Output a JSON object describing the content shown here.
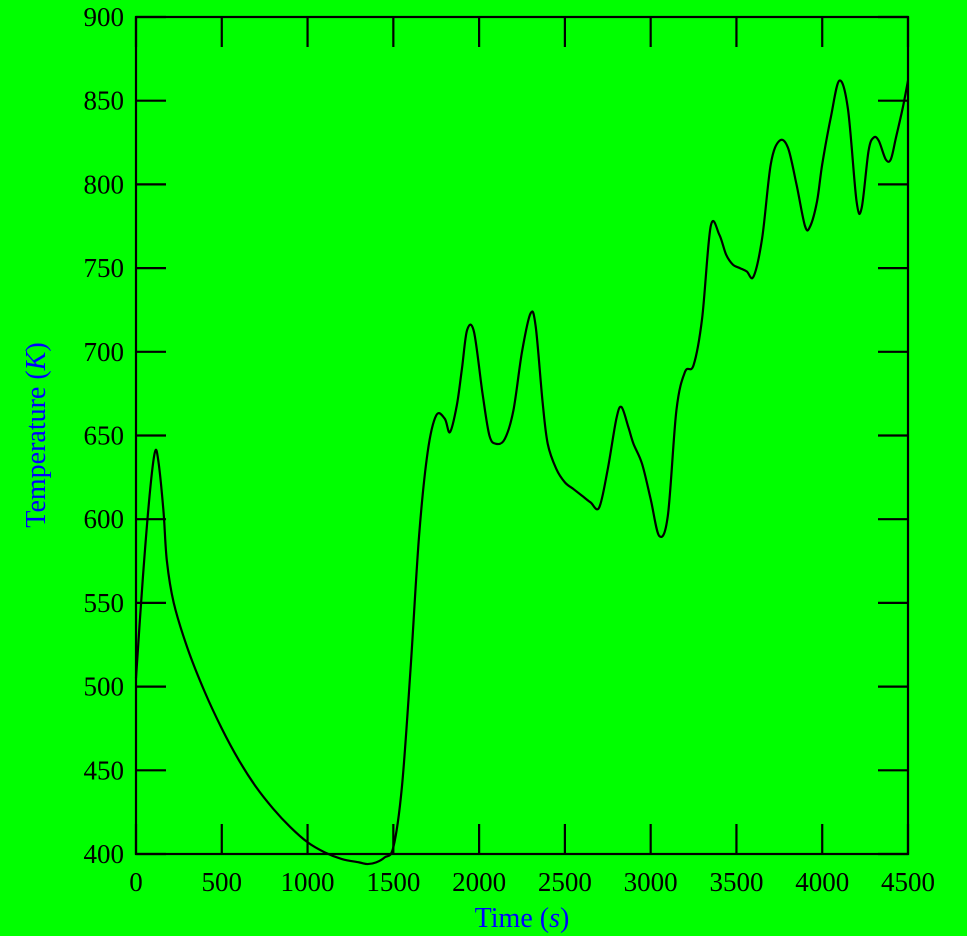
{
  "colors": {
    "background": "#00ff00",
    "line": "#000000",
    "axis_title": "#0000ff",
    "tick": "#000000"
  },
  "chart_data": {
    "type": "line",
    "title": "",
    "xlabel": "Time",
    "xlabel_unit": "s",
    "ylabel": "Temperature",
    "ylabel_unit": "K",
    "xlim": [
      0,
      4500
    ],
    "ylim": [
      400,
      900
    ],
    "xticks": [
      "0",
      "500",
      "1000",
      "1500",
      "2000",
      "2500",
      "3000",
      "3500",
      "4000",
      "4500"
    ],
    "yticks": [
      "400",
      "450",
      "500",
      "550",
      "600",
      "650",
      "700",
      "750",
      "800",
      "850",
      "900"
    ],
    "grid": false,
    "legend": "none",
    "series": [
      {
        "x": [
          0,
          40,
          80,
          110,
          130,
          160,
          180,
          220,
          300,
          400,
          500,
          600,
          700,
          800,
          900,
          1000,
          1100,
          1200,
          1300,
          1350,
          1400,
          1450,
          1500,
          1550,
          1600,
          1650,
          1700,
          1750,
          1800,
          1830,
          1870,
          1900,
          1930,
          1970,
          2020,
          2060,
          2100,
          2150,
          2200,
          2250,
          2300,
          2330,
          2370,
          2400,
          2450,
          2500,
          2550,
          2600,
          2650,
          2700,
          2750,
          2800,
          2830,
          2870,
          2900,
          2950,
          3000,
          3050,
          3100,
          3150,
          3200,
          3250,
          3300,
          3350,
          3400,
          3440,
          3480,
          3520,
          3560,
          3600,
          3650,
          3700,
          3750,
          3800,
          3850,
          3900,
          3930,
          3970,
          4000,
          4050,
          4100,
          4150,
          4200,
          4230,
          4270,
          4300,
          4330,
          4370,
          4400,
          4430,
          4470,
          4500
        ],
        "y": [
          505,
          565,
          615,
          640,
          635,
          605,
          575,
          550,
          523,
          497,
          475,
          456,
          440,
          427,
          416,
          407,
          401,
          397,
          395,
          394,
          395,
          398,
          404,
          440,
          510,
          590,
          640,
          662,
          660,
          652,
          668,
          690,
          713,
          712,
          675,
          650,
          645,
          648,
          665,
          700,
          723,
          715,
          670,
          645,
          630,
          622,
          618,
          614,
          610,
          607,
          630,
          660,
          667,
          655,
          645,
          633,
          612,
          590,
          602,
          665,
          688,
          692,
          720,
          775,
          770,
          758,
          752,
          750,
          748,
          745,
          768,
          812,
          826,
          822,
          800,
          775,
          775,
          790,
          812,
          840,
          862,
          845,
          790,
          786,
          820,
          828,
          826,
          815,
          815,
          828,
          846,
          862
        ]
      }
    ]
  }
}
